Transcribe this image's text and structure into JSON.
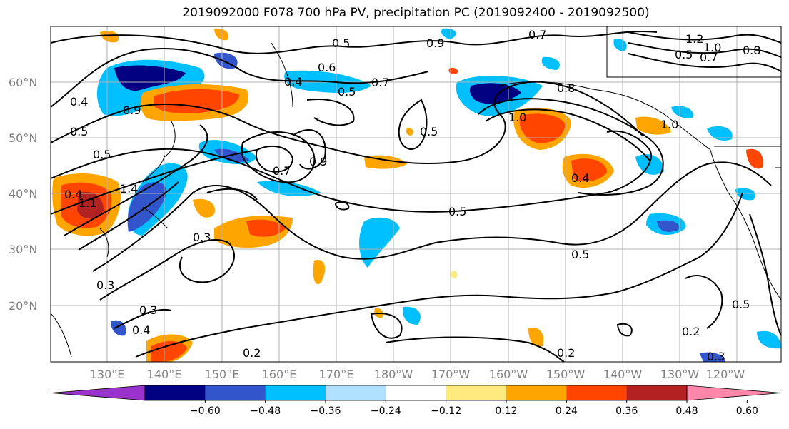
{
  "title": "2019092000 F078 700 hPa PV, precipitation PC (2019092400 - 2019092500)",
  "lat_labels": [
    "60°N",
    "50°N",
    "40°N",
    "30°N",
    "20°N"
  ],
  "lon_labels": [
    "130°E",
    "140°E",
    "150°E",
    "160°E",
    "170°E",
    "180°W",
    "170°W",
    "160°W",
    "150°W",
    "140°W",
    "130°W",
    "120°W"
  ],
  "colorbar": {
    "tick_labels": [
      "−0.60",
      "−0.48",
      "−0.36",
      "−0.24",
      "−0.12",
      "0.12",
      "0.24",
      "0.36",
      "0.48",
      "0.60"
    ],
    "colors": [
      "#9933cc",
      "#000080",
      "#3355cc",
      "#00bfff",
      "#b0e0ff",
      "#ffffff",
      "#ffea80",
      "#ffa500",
      "#ff4500",
      "#b22222",
      "#ff88aa"
    ]
  },
  "contour_labels": [
    "0.5",
    "0.7",
    "0.9",
    "0.4",
    "0.5",
    "0.7",
    "1.2",
    "1.0",
    "0.8",
    "0.7",
    "0.8",
    "0.5",
    "0.4",
    "0.5",
    "0.5",
    "1.0",
    "1.0",
    "0.4",
    "0.7",
    "0.9",
    "0.5",
    "1.4",
    "1.1",
    "0.3",
    "0.5",
    "0.5",
    "0.3",
    "0.4",
    "0.3",
    "0.2",
    "0.2",
    "0.5",
    "0.2",
    "0.3",
    "0.4",
    "0.9",
    "0.6"
  ],
  "colors": {
    "contour": "#000000",
    "grid": "#b0b0b0",
    "axis_label": "#808080"
  }
}
